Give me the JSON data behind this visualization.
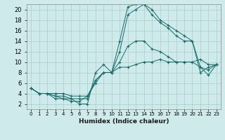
{
  "xlabel": "Humidex (Indice chaleur)",
  "ylabel": "",
  "background_color": "#ceeaea",
  "grid_color": "#aacccc",
  "line_color": "#1a6b6b",
  "x_ticks": [
    0,
    1,
    2,
    3,
    4,
    5,
    6,
    7,
    8,
    9,
    10,
    11,
    12,
    13,
    14,
    15,
    16,
    17,
    18,
    19,
    20,
    21,
    22,
    23
  ],
  "ylim": [
    1,
    21
  ],
  "xlim": [
    -0.5,
    23.5
  ],
  "series": [
    {
      "x": [
        0,
        1,
        2,
        3,
        4,
        5,
        6,
        7,
        8,
        9,
        10,
        11,
        12,
        13,
        14,
        15,
        16,
        17,
        18,
        19,
        20,
        21,
        22,
        23
      ],
      "y": [
        5,
        4,
        4,
        3,
        3,
        3,
        2,
        2,
        8,
        9.5,
        8,
        14,
        20.5,
        21,
        21,
        20,
        18,
        17,
        16,
        15,
        14,
        8,
        9,
        9.5
      ]
    },
    {
      "x": [
        0,
        1,
        2,
        3,
        4,
        5,
        6,
        7,
        8,
        9,
        10,
        11,
        12,
        13,
        14,
        15,
        16,
        17,
        18,
        19,
        20,
        21,
        22,
        23
      ],
      "y": [
        5,
        4,
        4,
        3.5,
        3,
        2.5,
        2.5,
        3.5,
        6,
        8,
        8,
        12,
        19,
        20,
        21,
        19,
        17.5,
        16.5,
        15,
        14,
        14,
        9,
        7.5,
        9.5
      ]
    },
    {
      "x": [
        0,
        1,
        2,
        3,
        4,
        5,
        6,
        7,
        8,
        9,
        10,
        11,
        12,
        13,
        14,
        15,
        16,
        17,
        18,
        19,
        20,
        21,
        22,
        23
      ],
      "y": [
        5,
        4,
        4,
        3.5,
        3.5,
        3,
        3,
        3,
        6.5,
        8,
        8,
        10,
        13,
        14,
        14,
        12.5,
        12,
        11,
        10,
        10,
        10,
        10.5,
        9.5,
        9.5
      ]
    },
    {
      "x": [
        0,
        1,
        2,
        3,
        4,
        5,
        6,
        7,
        8,
        9,
        10,
        11,
        12,
        13,
        14,
        15,
        16,
        17,
        18,
        19,
        20,
        21,
        22,
        23
      ],
      "y": [
        5,
        4,
        4,
        4,
        4,
        3.5,
        3.5,
        3.5,
        6.5,
        8,
        8,
        9,
        9,
        9.5,
        10,
        10,
        10.5,
        10,
        10,
        10,
        10,
        9,
        8.5,
        9.5
      ]
    }
  ]
}
